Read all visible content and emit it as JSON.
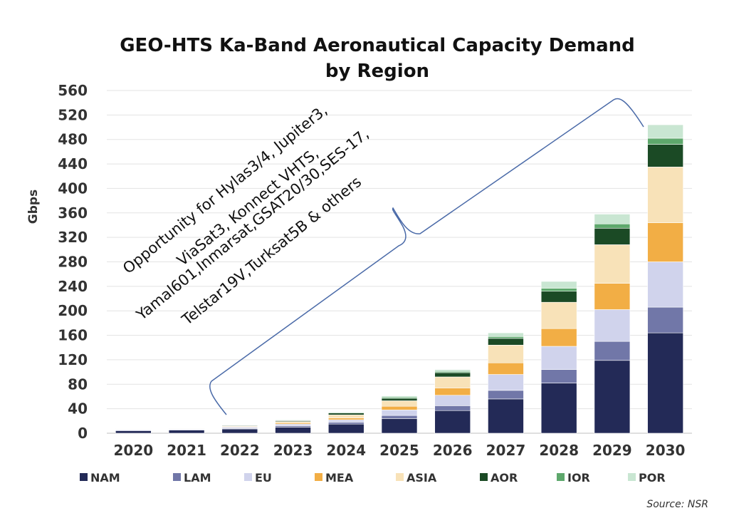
{
  "chart_data": {
    "type": "bar",
    "stacked": true,
    "title_lines": [
      "GEO-HTS Ka-Band Aeronautical Capacity Demand",
      "by Region"
    ],
    "ylabel": "Gbps",
    "xlabel": "",
    "ylim": [
      0,
      560
    ],
    "yticks": [
      0,
      40,
      80,
      120,
      160,
      200,
      240,
      280,
      320,
      360,
      400,
      440,
      480,
      520,
      560
    ],
    "grid": true,
    "legend_position": "bottom",
    "categories": [
      "2020",
      "2021",
      "2022",
      "2023",
      "2024",
      "2025",
      "2026",
      "2027",
      "2028",
      "2029",
      "2030"
    ],
    "series": [
      {
        "name": "NAM",
        "color": "#232a57",
        "values": [
          4,
          5,
          7,
          10,
          15,
          24,
          37,
          56,
          82,
          119,
          164
        ]
      },
      {
        "name": "LAM",
        "color": "#7177a8",
        "values": [
          1,
          1,
          1,
          2,
          3,
          5,
          8,
          14,
          22,
          31,
          42
        ]
      },
      {
        "name": "EU",
        "color": "#d0d3ec",
        "values": [
          1,
          1,
          2,
          3,
          4,
          9,
          17,
          26,
          38,
          52,
          74
        ]
      },
      {
        "name": "MEA",
        "color": "#f2ae45",
        "values": [
          0.5,
          0.5,
          1,
          2,
          3,
          6,
          12,
          19,
          29,
          43,
          64
        ]
      },
      {
        "name": "ASIA",
        "color": "#f8e2b8",
        "values": [
          0.5,
          0.5,
          1,
          2,
          5,
          9,
          18,
          29,
          43,
          63,
          91
        ]
      },
      {
        "name": "AOR",
        "color": "#1b4a25",
        "values": [
          0.5,
          0.5,
          1,
          1.5,
          3,
          4,
          7,
          11,
          18,
          27,
          37
        ]
      },
      {
        "name": "IOR",
        "color": "#5ea86c",
        "values": [
          0.2,
          0.2,
          0.3,
          0.5,
          1,
          2,
          2,
          3,
          5,
          7,
          10
        ]
      },
      {
        "name": "POR",
        "color": "#c9e6d2",
        "values": [
          0.3,
          0.3,
          0.5,
          1,
          1,
          2,
          3,
          6,
          11,
          16,
          22
        ]
      }
    ],
    "annotation_lines": [
      "Opportunity for Hylas3/4, Jupiter3,",
      "ViaSat3, Konnect VHTS,",
      "Yamal601,Inmarsat,GSAT20/30,SES-17,",
      "Telstar19V,Turksat5B & others"
    ],
    "annotation_range": [
      "2022",
      "2030"
    ],
    "source": "Source: NSR"
  }
}
